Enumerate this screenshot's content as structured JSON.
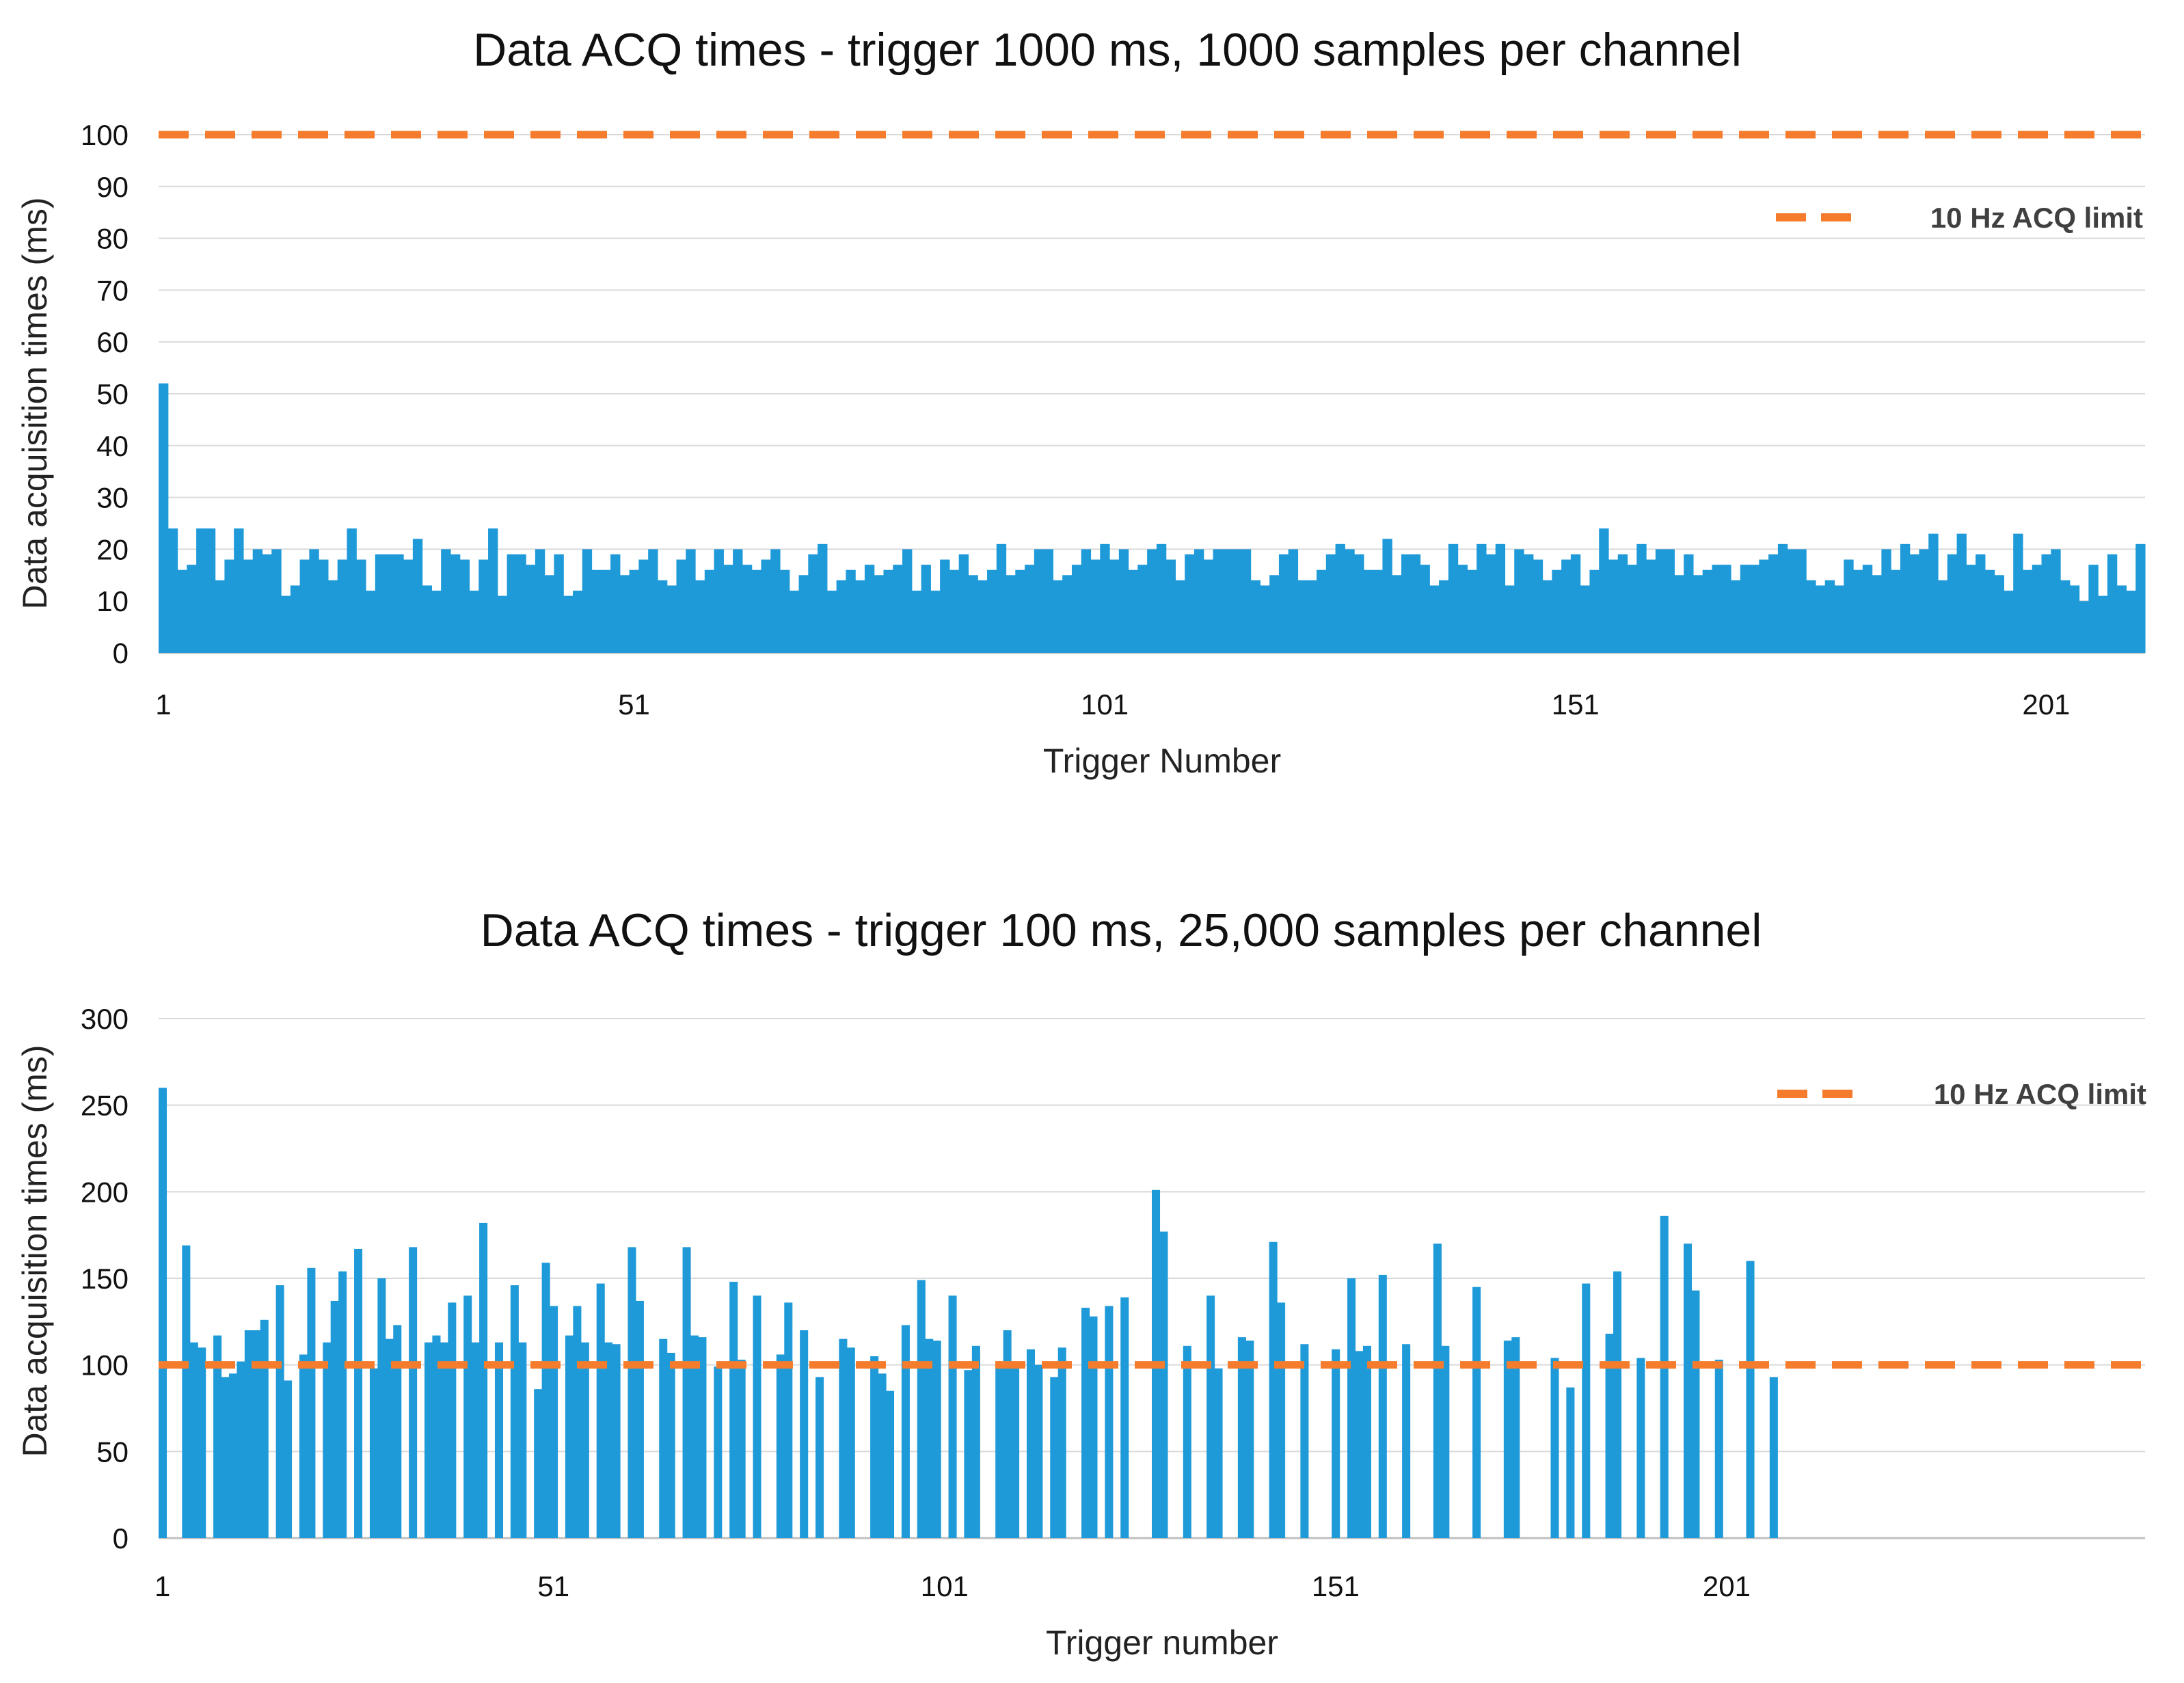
{
  "colors": {
    "bar": "#1f9ad9",
    "limit": "#f47c2c",
    "grid": "#d9d9d9",
    "axis": "#bfbfbf"
  },
  "chart_data": [
    {
      "type": "bar",
      "title": "Data ACQ times - trigger 1000 ms, 1000 samples per channel",
      "xlabel": "Trigger Number",
      "ylabel": "Data acquisition times (ms)",
      "ylim": [
        0,
        100
      ],
      "yticks": [
        0,
        10,
        20,
        30,
        40,
        50,
        60,
        70,
        80,
        90,
        100
      ],
      "xticks": [
        1,
        51,
        101,
        151,
        201
      ],
      "x_start": 1,
      "legend": {
        "label": "10 Hz ACQ limit",
        "position": "top-right"
      },
      "limit_line": {
        "name": "10 Hz ACQ limit",
        "value": 100,
        "style": "dashed"
      },
      "series": [
        {
          "name": "Data acquisition times (ms)",
          "values": [
            52,
            24,
            16,
            17,
            24,
            24,
            14,
            18,
            24,
            18,
            20,
            19,
            20,
            11,
            13,
            18,
            20,
            18,
            14,
            18,
            24,
            18,
            12,
            19,
            19,
            19,
            18,
            22,
            13,
            12,
            20,
            19,
            18,
            12,
            18,
            24,
            11,
            19,
            19,
            17,
            20,
            15,
            19,
            11,
            12,
            20,
            16,
            16,
            19,
            15,
            16,
            18,
            20,
            14,
            13,
            18,
            20,
            14,
            16,
            20,
            17,
            20,
            17,
            16,
            18,
            20,
            16,
            12,
            15,
            19,
            21,
            12,
            14,
            16,
            14,
            17,
            15,
            16,
            17,
            20,
            12,
            17,
            12,
            18,
            16,
            19,
            15,
            14,
            16,
            21,
            15,
            16,
            17,
            20,
            20,
            14,
            15,
            17,
            20,
            18,
            21,
            18,
            20,
            16,
            17,
            20,
            21,
            18,
            14,
            19,
            20,
            18,
            20,
            20,
            20,
            20,
            14,
            13,
            15,
            19,
            20,
            14,
            14,
            16,
            19,
            21,
            20,
            19,
            16,
            16,
            22,
            15,
            19,
            19,
            17,
            13,
            14,
            21,
            17,
            16,
            21,
            19,
            21,
            13,
            20,
            19,
            18,
            14,
            16,
            18,
            19,
            13,
            16,
            24,
            18,
            19,
            17,
            21,
            18,
            20,
            20,
            15,
            19,
            15,
            16,
            17,
            17,
            14,
            17,
            17,
            18,
            19,
            21,
            20,
            20,
            14,
            13,
            14,
            13,
            18,
            16,
            17,
            15,
            20,
            16,
            21,
            19,
            20,
            23,
            14,
            19,
            23,
            17,
            19,
            16,
            15,
            12,
            23,
            16,
            17,
            19,
            20,
            14,
            13,
            10,
            17,
            11,
            19,
            13,
            12,
            21
          ]
        }
      ]
    },
    {
      "type": "bar",
      "title": "Data ACQ times - trigger 100 ms, 25,000 samples per channel",
      "xlabel": "Trigger number",
      "ylabel": "Data acquisition times (ms)",
      "ylim": [
        0,
        300
      ],
      "yticks": [
        0,
        50,
        100,
        150,
        200,
        250,
        300
      ],
      "xticks": [
        1,
        51,
        101,
        151,
        201
      ],
      "x_start": 1,
      "legend": {
        "label": "10 Hz ACQ limit",
        "position": "top-right"
      },
      "limit_line": {
        "name": "10 Hz ACQ limit",
        "value": 100,
        "style": "dashed"
      },
      "series": [
        {
          "name": "Data acquisition times (ms)",
          "values": [
            260,
            0,
            0,
            169,
            113,
            110,
            0,
            117,
            93,
            95,
            102,
            120,
            120,
            126,
            0,
            146,
            91,
            0,
            106,
            156,
            0,
            113,
            137,
            154,
            0,
            167,
            0,
            98,
            150,
            115,
            123,
            0,
            168,
            0,
            113,
            117,
            113,
            136,
            0,
            140,
            113,
            182,
            0,
            113,
            0,
            146,
            113,
            0,
            86,
            159,
            134,
            0,
            117,
            134,
            113,
            0,
            147,
            113,
            112,
            0,
            168,
            137,
            0,
            0,
            115,
            107,
            0,
            168,
            117,
            116,
            0,
            99,
            0,
            148,
            103,
            0,
            140,
            0,
            0,
            106,
            136,
            0,
            120,
            0,
            93,
            0,
            0,
            115,
            110,
            0,
            0,
            105,
            95,
            85,
            0,
            123,
            0,
            149,
            115,
            114,
            0,
            140,
            0,
            97,
            111,
            0,
            0,
            99,
            120,
            98,
            0,
            109,
            100,
            0,
            93,
            110,
            0,
            0,
            133,
            128,
            0,
            134,
            0,
            139,
            0,
            0,
            0,
            201,
            177,
            0,
            0,
            111,
            0,
            0,
            140,
            98,
            0,
            0,
            116,
            114,
            0,
            0,
            171,
            136,
            0,
            0,
            112,
            0,
            0,
            0,
            109,
            0,
            150,
            108,
            111,
            0,
            152,
            0,
            0,
            112,
            0,
            0,
            0,
            170,
            111,
            0,
            0,
            0,
            145,
            0,
            0,
            0,
            114,
            116,
            0,
            0,
            0,
            0,
            104,
            0,
            87,
            0,
            147,
            0,
            0,
            118,
            154,
            0,
            0,
            104,
            0,
            0,
            186,
            0,
            0,
            170,
            143,
            0,
            0,
            103,
            0,
            0,
            0,
            160,
            0,
            0,
            93,
            0,
            0,
            0,
            0,
            0,
            0,
            0,
            0,
            0,
            0,
            0,
            0,
            0,
            0,
            0,
            0,
            0,
            0,
            0,
            0,
            0,
            0,
            0,
            0,
            0,
            0,
            0,
            0,
            0,
            0,
            0,
            0,
            0,
            0,
            0,
            0,
            0,
            0,
            0,
            0,
            0,
            0,
            0,
            0,
            0,
            0,
            0
          ]
        }
      ]
    }
  ]
}
